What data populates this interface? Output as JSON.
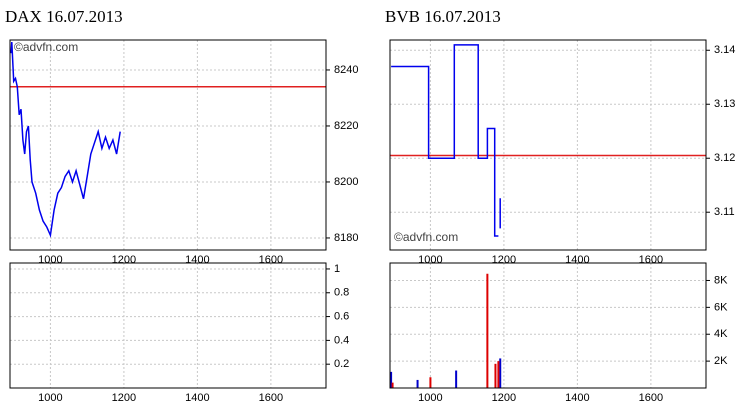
{
  "chart_data": [
    {
      "type": "line",
      "title": "DAX 16.07.2013",
      "watermark": "©advfn.com",
      "watermark_corner": "top-left",
      "x": [
        893,
        895,
        900,
        905,
        910,
        915,
        920,
        925,
        930,
        935,
        940,
        945,
        950,
        960,
        970,
        980,
        990,
        1000,
        1010,
        1020,
        1030,
        1040,
        1050,
        1060,
        1070,
        1080,
        1090,
        1100,
        1110,
        1120,
        1130,
        1140,
        1150,
        1160,
        1170,
        1180,
        1190
      ],
      "series": [
        {
          "color": "#0000ee",
          "values": [
            8246,
            8250,
            8236,
            8237,
            8234,
            8224,
            8226,
            8215,
            8210,
            8218,
            8220,
            8208,
            8200,
            8196,
            8190,
            8186,
            8184,
            8181,
            8190,
            8196,
            8198,
            8202,
            8204,
            8200,
            8204,
            8199,
            8194,
            8202,
            8210,
            8214,
            8218,
            8212,
            8216,
            8212,
            8215,
            8210,
            8218
          ]
        }
      ],
      "reference_line": {
        "value": 8234,
        "color": "#e02020"
      },
      "xlim": [
        890,
        1750
      ],
      "xticks": [
        1000,
        1200,
        1400,
        1600
      ],
      "ylim": [
        8175.7,
        8250.7
      ],
      "yticks": [
        8180,
        8200,
        8220,
        8240
      ],
      "grid": true
    },
    {
      "type": "bar",
      "series": [],
      "xlim": [
        890,
        1750
      ],
      "xticks": [
        1000,
        1200,
        1400,
        1600
      ],
      "ylim": [
        0,
        1.05
      ],
      "yticks": [
        0.2,
        0.4,
        0.6,
        0.8,
        1
      ],
      "grid": true
    },
    {
      "type": "line",
      "title": "BVB 16.07.2013",
      "watermark": "©advfn.com",
      "watermark_corner": "bottom-left",
      "x": [
        893,
        995,
        995,
        1065,
        1065,
        1130,
        1130,
        1155,
        1155,
        1175,
        1175,
        1185,
        1188,
        1190,
        1190
      ],
      "series": [
        {
          "color": "#0000ee",
          "values": [
            3.137,
            3.137,
            3.12,
            3.12,
            3.141,
            3.141,
            3.12,
            3.12,
            3.1255,
            3.1255,
            3.1056,
            3.1056,
            null,
            3.107,
            3.1126
          ]
        }
      ],
      "reference_line": {
        "value": 3.1205,
        "color": "#e02020"
      },
      "xlim": [
        890,
        1750
      ],
      "xticks": [
        1000,
        1200,
        1400,
        1600
      ],
      "ylim": [
        3.103,
        3.1419
      ],
      "yticks": [
        3.11,
        3.12,
        3.13,
        3.14
      ],
      "grid": true
    },
    {
      "type": "bar",
      "series": [
        {
          "color": "#0000cc",
          "x": [
            893,
            965,
            1070,
            1190
          ],
          "values": [
            1200,
            600,
            1300,
            2200
          ]
        },
        {
          "color": "#dd0000",
          "x": [
            897,
            1000,
            1155,
            1177,
            1185
          ],
          "values": [
            400,
            800,
            8500,
            1800,
            2000
          ]
        }
      ],
      "xlim": [
        890,
        1750
      ],
      "xticks": [
        1000,
        1200,
        1400,
        1600
      ],
      "ylim": [
        0,
        9300
      ],
      "yticks": [
        {
          "value": 2000,
          "label": "2K"
        },
        {
          "value": 4000,
          "label": "4K"
        },
        {
          "value": 6000,
          "label": "6K"
        },
        {
          "value": 8000,
          "label": "8K"
        }
      ],
      "grid": true
    }
  ]
}
